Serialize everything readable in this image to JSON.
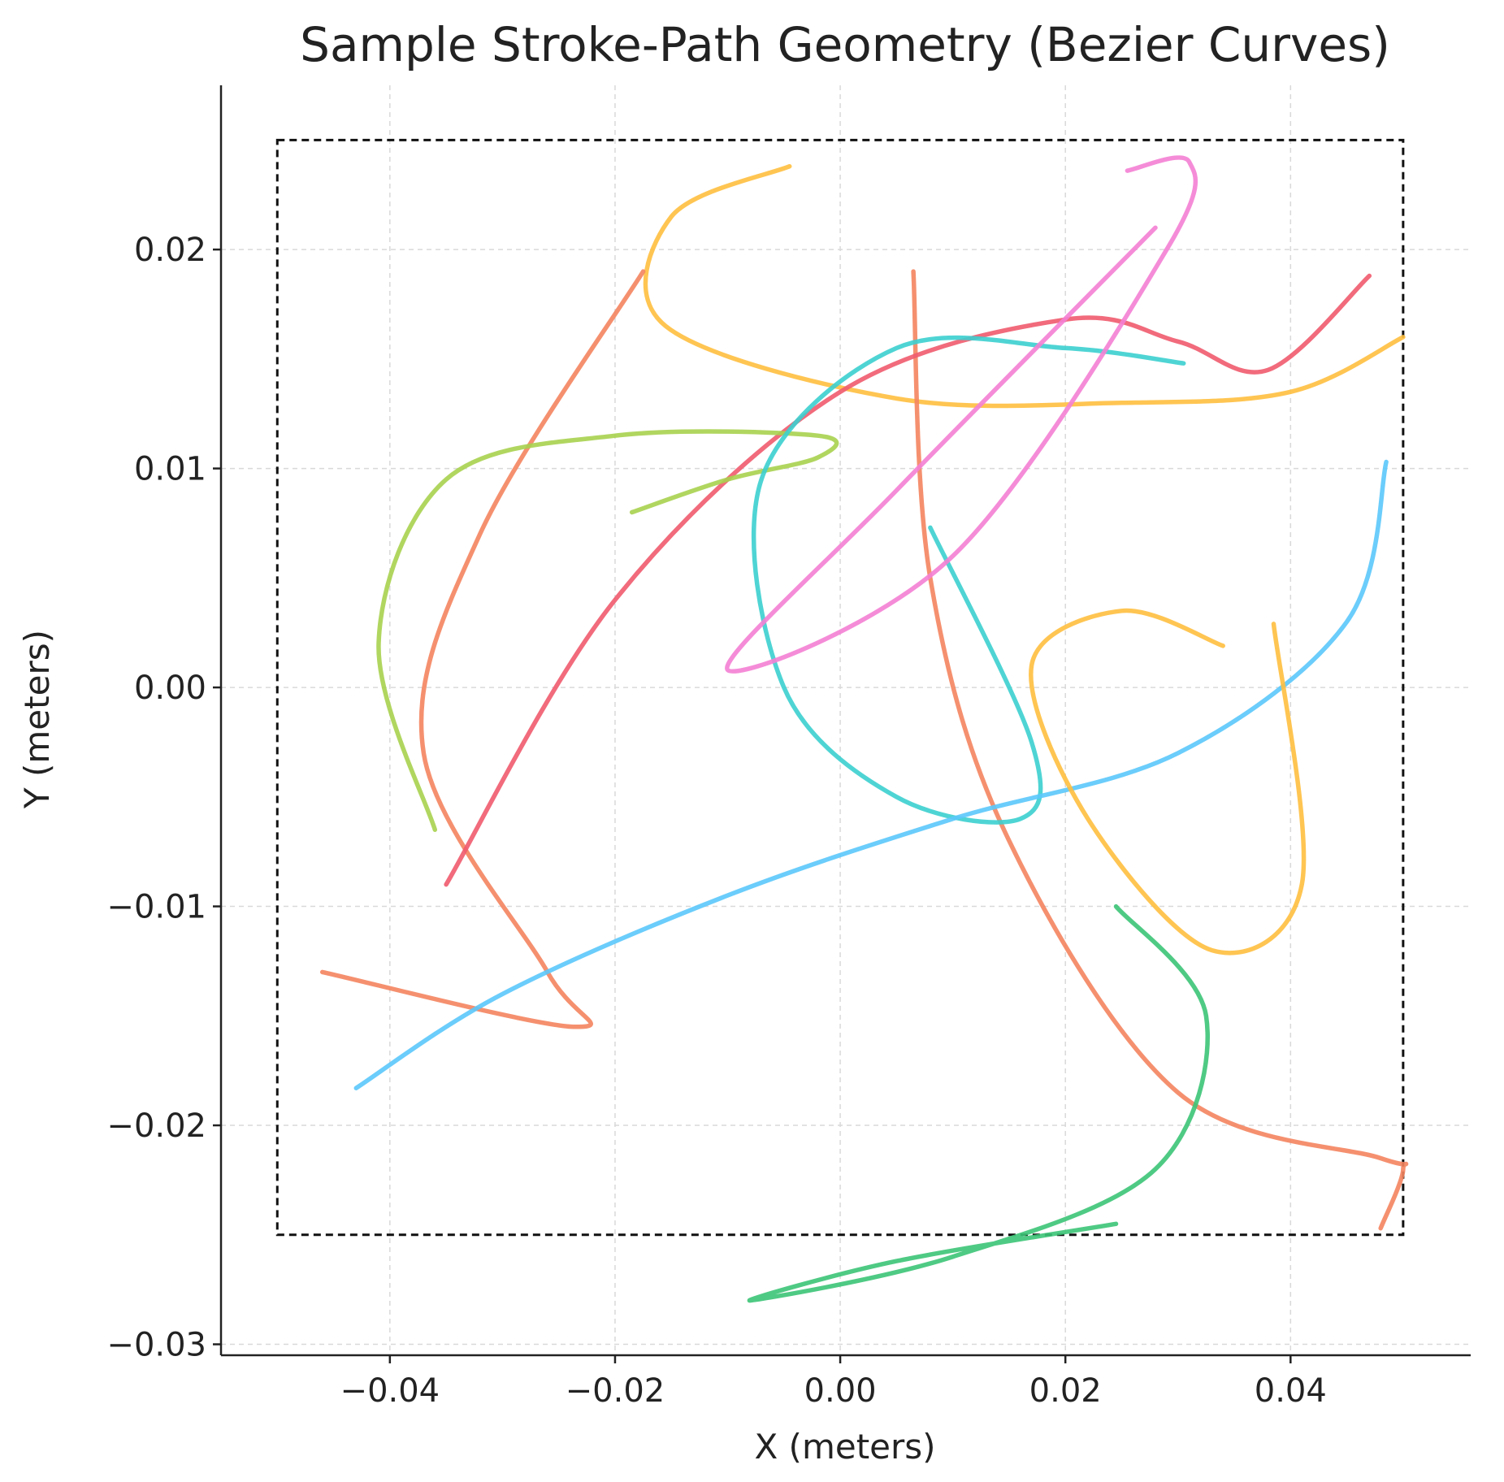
{
  "chart_data": {
    "type": "line",
    "title": "Sample Stroke-Path Geometry (Bezier Curves)",
    "xlabel": "X (meters)",
    "ylabel": "Y (meters)",
    "xlim": [
      -0.055,
      0.056
    ],
    "ylim": [
      -0.0305,
      0.0275
    ],
    "xticks": [
      -0.04,
      -0.02,
      0.0,
      0.02,
      0.04
    ],
    "xtick_labels": [
      "−0.04",
      "−0.02",
      "0.00",
      "0.02",
      "0.04"
    ],
    "yticks": [
      -0.03,
      -0.02,
      -0.01,
      0.0,
      0.01,
      0.02
    ],
    "ytick_labels": [
      "−0.03",
      "−0.02",
      "−0.01",
      "0.00",
      "0.01",
      "0.02"
    ],
    "grid": true,
    "boundary": {
      "x": [
        -0.05,
        0.05
      ],
      "y": [
        -0.025,
        0.025
      ]
    },
    "series": [
      {
        "color": "#ffbf3f",
        "points": [
          [
            -0.0045,
            0.0238
          ],
          [
            -0.015,
            0.0215
          ],
          [
            -0.0155,
            0.0165
          ],
          [
            0.005,
            0.0132
          ],
          [
            0.025,
            0.013
          ],
          [
            0.04,
            0.0135
          ],
          [
            0.05,
            0.016
          ]
        ]
      },
      {
        "color": "#f4845f",
        "points": [
          [
            -0.0175,
            0.019
          ],
          [
            -0.032,
            0.007
          ],
          [
            -0.037,
            -0.003
          ],
          [
            -0.026,
            -0.013
          ],
          [
            -0.0235,
            -0.0155
          ],
          [
            -0.046,
            -0.013
          ]
        ]
      },
      {
        "color": "#f4845f",
        "points": [
          [
            0.0065,
            0.019
          ],
          [
            0.008,
            0.005
          ],
          [
            0.015,
            -0.007
          ],
          [
            0.03,
            -0.0185
          ],
          [
            0.048,
            -0.0215
          ],
          [
            0.05,
            -0.022
          ],
          [
            0.048,
            -0.0247
          ]
        ]
      },
      {
        "color": "#ef5b6e",
        "points": [
          [
            -0.035,
            -0.009
          ],
          [
            -0.02,
            0.004
          ],
          [
            0.0,
            0.0135
          ],
          [
            0.02,
            0.0168
          ],
          [
            0.03,
            0.0158
          ],
          [
            0.038,
            0.0145
          ],
          [
            0.047,
            0.0188
          ]
        ]
      },
      {
        "color": "#a8d14f",
        "points": [
          [
            -0.0185,
            0.008
          ],
          [
            -0.01,
            0.0095
          ],
          [
            -0.002,
            0.0105
          ],
          [
            -0.002,
            0.0115
          ],
          [
            -0.02,
            0.0115
          ],
          [
            -0.035,
            0.0095
          ],
          [
            -0.041,
            0.002
          ],
          [
            -0.036,
            -0.0065
          ]
        ]
      },
      {
        "color": "#3ccfcf",
        "points": [
          [
            0.0305,
            0.0148
          ],
          [
            0.02,
            0.0155
          ],
          [
            0.005,
            0.0155
          ],
          [
            -0.007,
            0.0095
          ],
          [
            -0.005,
            0.0
          ],
          [
            0.005,
            -0.005
          ],
          [
            0.016,
            -0.006
          ],
          [
            0.017,
            -0.0025
          ],
          [
            0.008,
            0.0073
          ]
        ]
      },
      {
        "color": "#f47fd4",
        "points": [
          [
            0.0255,
            0.0236
          ],
          [
            0.031,
            0.024
          ],
          [
            0.029,
            0.02
          ],
          [
            0.01,
            0.006
          ],
          [
            -0.01,
            0.0008
          ],
          [
            0.005,
            0.009
          ],
          [
            0.028,
            0.021
          ]
        ]
      },
      {
        "color": "#5bc8fb",
        "points": [
          [
            -0.043,
            -0.0183
          ],
          [
            -0.03,
            -0.014
          ],
          [
            -0.01,
            -0.0095
          ],
          [
            0.01,
            -0.006
          ],
          [
            0.03,
            -0.003
          ],
          [
            0.045,
            0.003
          ],
          [
            0.0485,
            0.0103
          ]
        ]
      },
      {
        "color": "#ffbf3f",
        "points": [
          [
            0.034,
            0.0019
          ],
          [
            0.025,
            0.0035
          ],
          [
            0.017,
            0.001
          ],
          [
            0.022,
            -0.006
          ],
          [
            0.033,
            -0.012
          ],
          [
            0.041,
            -0.009
          ],
          [
            0.0385,
            0.0029
          ]
        ]
      },
      {
        "color": "#3cc477",
        "points": [
          [
            0.0245,
            -0.01
          ],
          [
            0.0325,
            -0.015
          ],
          [
            0.028,
            -0.022
          ],
          [
            0.01,
            -0.026
          ],
          [
            -0.008,
            -0.028
          ],
          [
            0.005,
            -0.0262
          ],
          [
            0.0245,
            -0.0245
          ]
        ]
      }
    ]
  }
}
